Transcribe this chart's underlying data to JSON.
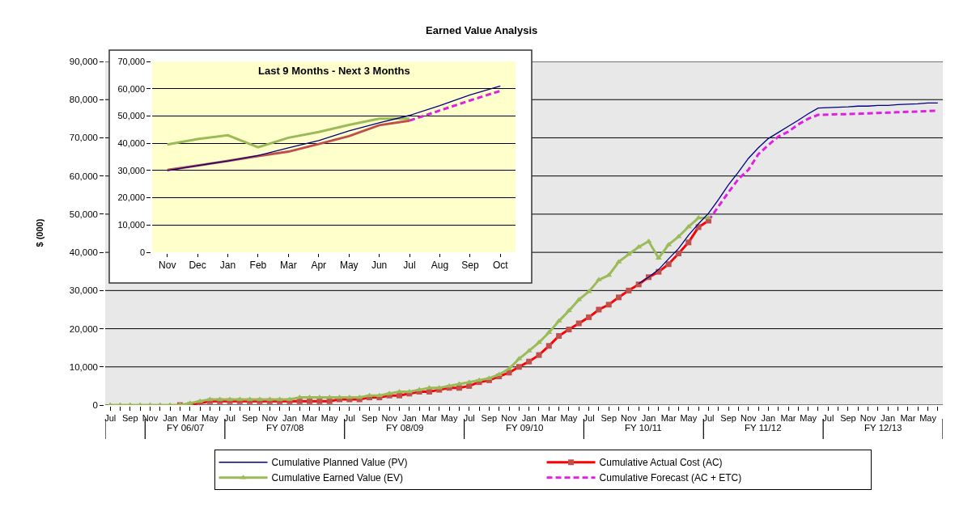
{
  "chart_data": [
    {
      "type": "line",
      "title": "Earned Value Analysis",
      "ylabel": "$ (000)",
      "categories": [
        "Jul",
        null,
        "Sep",
        null,
        "Nov",
        null,
        "Jan",
        null,
        "Mar",
        null,
        "May",
        null,
        "Jul",
        null,
        "Sep",
        null,
        "Nov",
        null,
        "Jan",
        null,
        "Mar",
        null,
        "May",
        null,
        "Jul",
        null,
        "Sep",
        null,
        "Nov",
        null,
        "Jan",
        null,
        "Mar",
        null,
        "May",
        null,
        "Jul",
        null,
        "Sep",
        null,
        "Nov",
        null,
        "Jan",
        null,
        "Mar",
        null,
        "May",
        null,
        "Jul",
        null,
        "Sep",
        null,
        "Nov",
        null,
        "Jan",
        null,
        "Mar",
        null,
        "May",
        null,
        "Jul",
        null,
        "Sep",
        null,
        "Nov",
        null,
        "Jan",
        null,
        "Mar",
        null,
        "May",
        null,
        "Jul",
        null,
        "Sep",
        null,
        "Nov",
        null,
        "Jan",
        null,
        "Mar",
        null,
        "May",
        null
      ],
      "series": [
        {
          "name": "Cumulative Planned Value (PV)",
          "color": "#000080",
          "marker": "none",
          "line_style": "solid",
          "values": [
            null,
            null,
            null,
            null,
            null,
            null,
            null,
            null,
            null,
            null,
            null,
            null,
            null,
            null,
            null,
            null,
            null,
            null,
            null,
            null,
            null,
            null,
            null,
            null,
            null,
            null,
            null,
            null,
            null,
            null,
            null,
            null,
            null,
            null,
            null,
            null,
            null,
            null,
            null,
            null,
            null,
            null,
            null,
            null,
            null,
            null,
            null,
            null,
            null,
            null,
            null,
            null,
            null,
            31800,
            33500,
            35500,
            38300,
            41000,
            44500,
            47500,
            50200,
            53800,
            57700,
            61000,
            64600,
            67400,
            69800,
            71400,
            73000,
            74600,
            76300,
            77800,
            77900,
            78000,
            78100,
            78300,
            78300,
            78500,
            78500,
            78700,
            78800,
            78900,
            79100,
            79100
          ]
        },
        {
          "name": "Cumulative Actual Cost (AC)",
          "color": "#ff0000",
          "marker": "square",
          "line_style": "solid",
          "values": [
            null,
            null,
            null,
            null,
            null,
            null,
            null,
            0,
            0,
            500,
            1000,
            1000,
            1000,
            1000,
            1000,
            1000,
            1000,
            1000,
            1000,
            1000,
            1000,
            1000,
            1000,
            1500,
            1500,
            1500,
            2000,
            2000,
            2500,
            2500,
            3000,
            3500,
            3500,
            4000,
            4500,
            4500,
            5000,
            6000,
            6500,
            7500,
            8500,
            10000,
            11400,
            13100,
            15500,
            18100,
            19800,
            21400,
            23000,
            25000,
            26300,
            28200,
            30000,
            31600,
            33500,
            34900,
            36900,
            39700,
            42600,
            46600,
            48300,
            null,
            null,
            null,
            null,
            null,
            null,
            null,
            null,
            null,
            null,
            null,
            null,
            null,
            null,
            null,
            null,
            null,
            null,
            null,
            null,
            null,
            null,
            null
          ]
        },
        {
          "name": "Cumulative Earned Value (EV)",
          "color": "#9bbb59",
          "marker": "triangle",
          "line_style": "solid",
          "values": [
            0,
            0,
            0,
            0,
            0,
            0,
            0,
            0,
            500,
            1000,
            1500,
            1500,
            1500,
            1500,
            1500,
            1500,
            1500,
            1500,
            1500,
            2000,
            2000,
            2000,
            2000,
            2000,
            2000,
            2000,
            2500,
            2500,
            3000,
            3500,
            3500,
            4000,
            4500,
            4500,
            5000,
            5500,
            6000,
            6500,
            7000,
            8000,
            9500,
            12100,
            14200,
            16400,
            19000,
            22000,
            24700,
            27600,
            29700,
            32800,
            34000,
            37500,
            39500,
            41400,
            42900,
            38500,
            42000,
            44100,
            46700,
            49000,
            49000,
            null,
            null,
            null,
            null,
            null,
            null,
            null,
            null,
            null,
            null,
            null,
            null,
            null,
            null,
            null,
            null,
            null,
            null,
            null,
            null,
            null,
            null,
            null
          ]
        },
        {
          "name": "Cumulative Forecast (AC + ETC)",
          "color": "#e020e0",
          "marker": "none",
          "line_style": "dashed",
          "values": [
            null,
            null,
            null,
            null,
            null,
            null,
            null,
            null,
            null,
            null,
            null,
            null,
            null,
            null,
            null,
            null,
            null,
            null,
            null,
            null,
            null,
            null,
            null,
            null,
            null,
            null,
            null,
            null,
            null,
            null,
            null,
            null,
            null,
            null,
            null,
            null,
            null,
            null,
            null,
            null,
            null,
            null,
            null,
            null,
            null,
            null,
            null,
            null,
            null,
            null,
            null,
            null,
            null,
            null,
            null,
            null,
            null,
            null,
            null,
            null,
            48300,
            52000,
            55700,
            59200,
            61600,
            65700,
            68100,
            70300,
            71600,
            73500,
            75000,
            76000,
            76100,
            76200,
            76200,
            76300,
            76400,
            76500,
            76600,
            76700,
            76800,
            76900,
            77000,
            77100
          ]
        }
      ],
      "ylim": [
        0,
        90000
      ],
      "yticks": [
        0,
        {
          "value": 10000,
          "label": "10,000"
        },
        {
          "value": 20000,
          "label": "20,000"
        },
        {
          "value": 30000,
          "label": "30,000"
        },
        {
          "value": 40000,
          "label": "40,000"
        },
        {
          "value": 50000,
          "label": "50,000"
        },
        {
          "value": 60000,
          "label": "60,000"
        },
        {
          "value": 70000,
          "label": "70,000"
        },
        {
          "value": 80000,
          "label": "80,000"
        },
        {
          "value": 90000,
          "label": "90,000"
        }
      ],
      "grid": "y",
      "legend": "bottom",
      "annotations": [
        "FY 06/07",
        "FY 07/08",
        "FY 08/09",
        "FY 09/10",
        "FY 10/11",
        "FY 11/12",
        "FY 12/13"
      ]
    },
    {
      "type": "line",
      "title": "Last 9 Months - Next 3 Months",
      "categories": [
        "Nov",
        "Dec",
        "Jan",
        "Feb",
        "Mar",
        "Apr",
        "May",
        "Jun",
        "Jul",
        "Aug",
        "Sep",
        "Oct"
      ],
      "series": [
        {
          "color": "#000080",
          "line_style": "solid",
          "values": [
            30000,
            31800,
            33500,
            35500,
            38300,
            41000,
            44500,
            47500,
            50200,
            53800,
            57700,
            61000
          ]
        },
        {
          "color": "#9bbb59",
          "line_style": "solid",
          "values": [
            39500,
            41500,
            42900,
            38500,
            42000,
            44100,
            46700,
            49000,
            49000,
            null,
            null,
            null
          ]
        },
        {
          "color": "#c0504d",
          "line_style": "solid",
          "values": [
            30200,
            31800,
            33500,
            35300,
            36900,
            39700,
            42600,
            46600,
            48300,
            null,
            null,
            null
          ]
        },
        {
          "color": "#e020e0",
          "line_style": "dashed",
          "values": [
            null,
            null,
            null,
            null,
            null,
            null,
            null,
            null,
            48300,
            52000,
            55700,
            59200
          ]
        }
      ],
      "ylim": [
        0,
        70000
      ],
      "yticks": [
        0,
        {
          "value": 10000,
          "label": "10,000"
        },
        {
          "value": 20000,
          "label": "20,000"
        },
        {
          "value": 30000,
          "label": "30,000"
        },
        {
          "value": 40000,
          "label": "40,000"
        },
        {
          "value": 50000,
          "label": "50,000"
        },
        {
          "value": 60000,
          "label": "60,000"
        },
        {
          "value": 70000,
          "label": "70,000"
        }
      ],
      "grid": "y",
      "legend": false
    }
  ]
}
